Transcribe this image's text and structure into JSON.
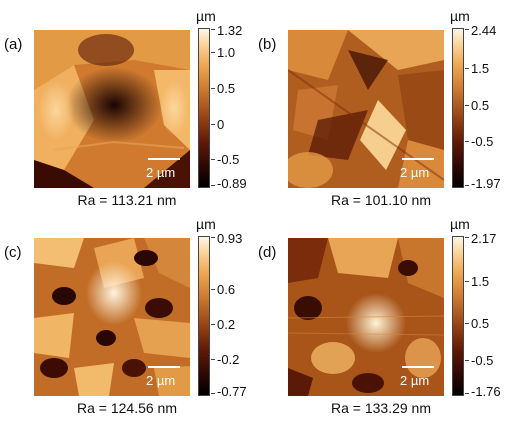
{
  "panels": [
    {
      "label": "(a)",
      "scale": "2 µm",
      "unit": "µm",
      "ra": "Ra = 113.21 nm",
      "ticks": [
        "1.32",
        "1.0",
        "0.5",
        "0",
        "-0.5",
        "-0.89"
      ],
      "colors": {
        "bg": "#cf7a2f",
        "dark": "#240602",
        "light": "#f7c57a"
      }
    },
    {
      "label": "(b)",
      "scale": "2 µm",
      "unit": "µm",
      "ra": "Ra = 101.10 nm",
      "ticks": [
        "2.44",
        "1.5",
        "0.5",
        "-0.5",
        "-1.97"
      ],
      "colors": {
        "bg": "#b05e1f",
        "dark": "#3a0c04",
        "light": "#f6cf8e"
      }
    },
    {
      "label": "(c)",
      "scale": "2 µm",
      "unit": "µm",
      "ra": "Ra = 124.56 nm",
      "ticks": [
        "0.93",
        "0.6",
        "0.2",
        "-0.2",
        "-0.77"
      ],
      "colors": {
        "bg": "#c26d27",
        "dark": "#2b0703",
        "light": "#fbe0b0"
      }
    },
    {
      "label": "(d)",
      "scale": "2 µm",
      "unit": "µm",
      "ra": "Ra = 133.29 nm",
      "ticks": [
        "2.17",
        "1.5",
        "0.5",
        "-0.5",
        "-1.76"
      ],
      "colors": {
        "bg": "#a95519",
        "dark": "#3a0d04",
        "light": "#f9daa0"
      }
    }
  ]
}
